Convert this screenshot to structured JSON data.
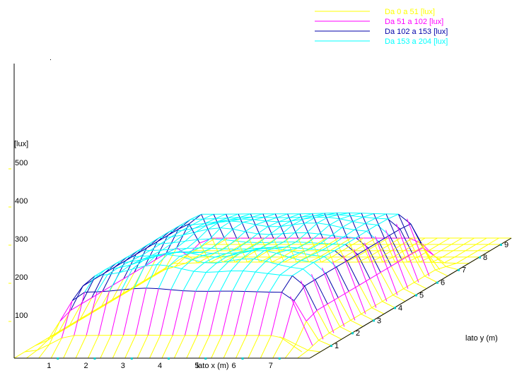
{
  "chart_data": {
    "type": "surface",
    "title": "",
    "legend": {
      "position": "top-right",
      "entries": [
        {
          "label": "Da   0 a  51 [lux]",
          "color": "#ffff00",
          "min": 0,
          "max": 51
        },
        {
          "label": "Da  51 a  102 [lux]",
          "color": "#ff00ff",
          "min": 51,
          "max": 102
        },
        {
          "label": "Da  102 a  153 [lux]",
          "color": "#0000aa",
          "min": 102,
          "max": 153
        },
        {
          "label": "Da  153 a  204 [lux]",
          "color": "#00ffff",
          "min": 153,
          "max": 204
        }
      ]
    },
    "z_axis": {
      "label": "[lux]",
      "ticks": [
        100,
        200,
        300,
        400,
        500
      ],
      "range": [
        0,
        550
      ]
    },
    "x_axis": {
      "label": "lato x (m)",
      "ticks": [
        1,
        2,
        3,
        4,
        5,
        6,
        7
      ],
      "range": [
        0,
        8
      ]
    },
    "y_axis": {
      "label": "lato y (m)",
      "ticks": [
        1,
        2,
        3,
        4,
        5,
        6,
        7,
        8,
        9
      ],
      "range": [
        0,
        9.5
      ]
    },
    "grid_size": {
      "x_cells": 24,
      "y_cells": 19
    },
    "surface": {
      "description_of_values": "illuminance in lux; flat at ~0 at the borders, a plateau of ~165-190 lux in the central area with local peaks",
      "peaks": [
        {
          "x": 3.0,
          "y": 2.0,
          "value": 205
        },
        {
          "x": 5.2,
          "y": 2.4,
          "value": 200
        },
        {
          "x": 3.0,
          "y": 4.8,
          "value": 195
        },
        {
          "x": 5.2,
          "y": 5.2,
          "value": 190
        }
      ],
      "plateau": {
        "x_range": [
          1.3,
          6.7
        ],
        "y_range": [
          1.3,
          6.4
        ],
        "value": 165
      }
    }
  }
}
